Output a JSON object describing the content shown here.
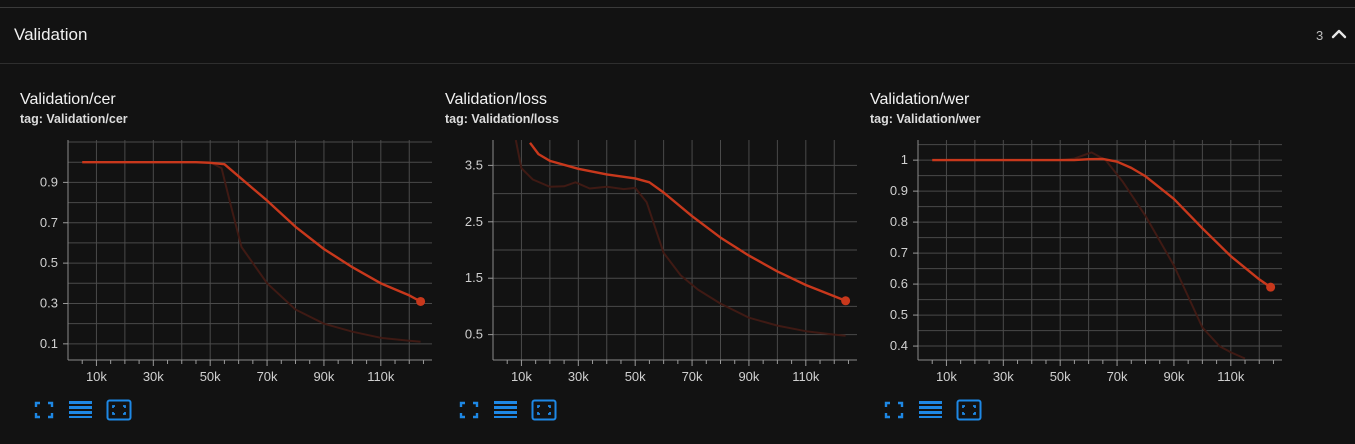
{
  "section": {
    "title": "Validation",
    "count": "3",
    "collapse_icon": "chevron-up-icon"
  },
  "colors": {
    "background": "#121212",
    "grid": "#4a4a4a",
    "smoothed_line": "#c8381c",
    "raw_line": "#3f1a14",
    "accent_icon": "#1e88e5"
  },
  "card_actions": [
    "fullscreen-icon",
    "toggle-log-scale-icon",
    "fit-domain-icon"
  ],
  "chart_data": [
    {
      "type": "line",
      "title": "Validation/cer",
      "subtitle": "tag: Validation/cer",
      "xlim": [
        0,
        128000
      ],
      "ylim": [
        0.02,
        1.11
      ],
      "x_ticks": [
        10000,
        30000,
        50000,
        70000,
        90000,
        110000
      ],
      "x_tick_labels": [
        "10k",
        "30k",
        "50k",
        "70k",
        "90k",
        "110k"
      ],
      "y_ticks": [
        0.1,
        0.3,
        0.5,
        0.7,
        0.9
      ],
      "y_tick_labels": [
        "0.1",
        "0.3",
        "0.5",
        "0.7",
        "0.9"
      ],
      "series": [
        {
          "role": "raw",
          "x": [
            5000,
            20000,
            45000,
            50000,
            54000,
            57000,
            61000,
            70000,
            80000,
            90000,
            100000,
            110000,
            120000,
            124000
          ],
          "y": [
            1.0,
            1.0,
            1.0,
            1.0,
            0.97,
            0.8,
            0.58,
            0.4,
            0.27,
            0.2,
            0.16,
            0.13,
            0.115,
            0.11
          ]
        },
        {
          "role": "smoothed",
          "x": [
            5000,
            20000,
            45000,
            50000,
            55000,
            60000,
            70000,
            80000,
            90000,
            100000,
            110000,
            120000,
            124000
          ],
          "y": [
            1.0,
            1.0,
            1.0,
            0.997,
            0.99,
            0.93,
            0.81,
            0.68,
            0.57,
            0.48,
            0.4,
            0.34,
            0.31
          ]
        }
      ],
      "last_point": {
        "x": 124000,
        "y": 0.31
      }
    },
    {
      "type": "line",
      "title": "Validation/loss",
      "subtitle": "tag: Validation/loss",
      "xlim": [
        0,
        128000
      ],
      "ylim": [
        0.05,
        3.95
      ],
      "x_ticks": [
        10000,
        30000,
        50000,
        70000,
        90000,
        110000
      ],
      "x_tick_labels": [
        "10k",
        "30k",
        "50k",
        "70k",
        "90k",
        "110k"
      ],
      "y_ticks": [
        0.5,
        1.5,
        2.5,
        3.5
      ],
      "y_tick_labels": [
        "0.5",
        "1.5",
        "2.5",
        "3.5"
      ],
      "series": [
        {
          "role": "raw",
          "x": [
            8000,
            10000,
            14000,
            20000,
            25000,
            29000,
            34000,
            40000,
            46000,
            50000,
            54000,
            57000,
            60000,
            66000,
            72000,
            80000,
            90000,
            100000,
            110000,
            120000,
            124000
          ],
          "y": [
            3.95,
            3.45,
            3.25,
            3.12,
            3.13,
            3.2,
            3.09,
            3.12,
            3.08,
            3.1,
            2.85,
            2.4,
            1.95,
            1.55,
            1.3,
            1.05,
            0.8,
            0.66,
            0.56,
            0.5,
            0.48
          ],
          "clip": true
        },
        {
          "role": "smoothed",
          "x": [
            13000,
            16000,
            20000,
            30000,
            40000,
            50000,
            55000,
            60000,
            70000,
            80000,
            90000,
            100000,
            110000,
            120000,
            124000
          ],
          "y": [
            3.9,
            3.7,
            3.58,
            3.44,
            3.34,
            3.27,
            3.2,
            3.02,
            2.6,
            2.22,
            1.9,
            1.62,
            1.38,
            1.18,
            1.1
          ]
        }
      ],
      "last_point": {
        "x": 124000,
        "y": 1.1
      }
    },
    {
      "type": "line",
      "title": "Validation/wer",
      "subtitle": "tag: Validation/wer",
      "xlim": [
        0,
        128000
      ],
      "ylim": [
        0.355,
        1.065
      ],
      "x_ticks": [
        10000,
        30000,
        50000,
        70000,
        90000,
        110000
      ],
      "x_tick_labels": [
        "10k",
        "30k",
        "50k",
        "70k",
        "90k",
        "110k"
      ],
      "y_ticks": [
        0.4,
        0.5,
        0.6,
        0.7,
        0.8,
        0.9,
        1.0
      ],
      "y_tick_labels": [
        "0.4",
        "0.5",
        "0.6",
        "0.7",
        "0.8",
        "0.9",
        "1"
      ],
      "series": [
        {
          "role": "raw",
          "x": [
            5000,
            50000,
            55000,
            58000,
            61000,
            66000,
            72000,
            80000,
            90000,
            100000,
            106000,
            110000,
            115000
          ],
          "y": [
            1.0,
            1.0,
            1.005,
            1.015,
            1.025,
            1.0,
            0.93,
            0.82,
            0.66,
            0.46,
            0.4,
            0.38,
            0.36
          ],
          "clip": true
        },
        {
          "role": "smoothed",
          "x": [
            5000,
            50000,
            55000,
            60000,
            65000,
            70000,
            75000,
            80000,
            90000,
            100000,
            110000,
            120000,
            124000
          ],
          "y": [
            1.0,
            1.0,
            1.0,
            1.003,
            1.004,
            0.995,
            0.975,
            0.948,
            0.875,
            0.78,
            0.69,
            0.615,
            0.59
          ]
        }
      ],
      "last_point": {
        "x": 124000,
        "y": 0.59
      }
    }
  ]
}
